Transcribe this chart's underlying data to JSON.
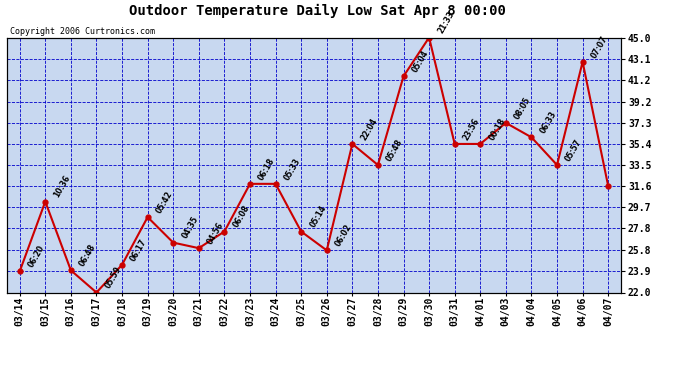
{
  "title": "Outdoor Temperature Daily Low Sat Apr 8 00:00",
  "copyright": "Copyright 2006 Curtronics.com",
  "background_color": "#ffffff",
  "plot_bg_color": "#c8d8f0",
  "line_color": "#cc0000",
  "marker_color": "#cc0000",
  "grid_color": "#0000cc",
  "ylim": [
    22.0,
    45.0
  ],
  "yticks": [
    22.0,
    23.9,
    25.8,
    27.8,
    29.7,
    31.6,
    33.5,
    35.4,
    37.3,
    39.2,
    41.2,
    43.1,
    45.0
  ],
  "x_labels": [
    "03/14",
    "03/15",
    "03/16",
    "03/17",
    "03/18",
    "03/19",
    "03/20",
    "03/21",
    "03/22",
    "03/23",
    "03/24",
    "03/25",
    "03/26",
    "03/27",
    "03/28",
    "03/29",
    "03/30",
    "03/31",
    "04/01",
    "04/03",
    "04/04",
    "04/05",
    "04/06",
    "04/07"
  ],
  "y_values": [
    23.9,
    30.2,
    24.0,
    22.0,
    24.5,
    28.8,
    26.5,
    26.0,
    27.5,
    31.8,
    31.8,
    27.5,
    25.8,
    35.4,
    33.5,
    41.5,
    45.0,
    35.4,
    35.4,
    37.3,
    36.0,
    33.5,
    42.8,
    31.6
  ],
  "point_labels": [
    "06:20",
    "10:36",
    "06:48",
    "05:59",
    "06:17",
    "05:42",
    "04:35",
    "04:56",
    "06:08",
    "06:18",
    "05:33",
    "05:14",
    "06:02",
    "22:04",
    "05:48",
    "05:04",
    "21:33",
    "23:56",
    "00:18",
    "08:05",
    "06:33",
    "05:57",
    "07:07",
    ""
  ]
}
